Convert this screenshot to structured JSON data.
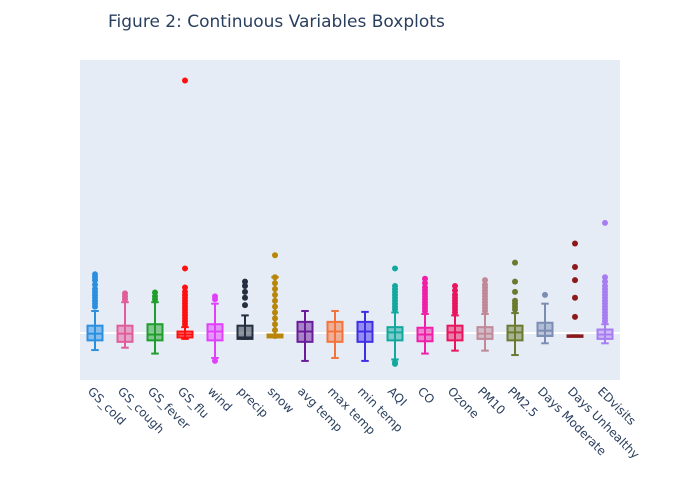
{
  "chart_data": {
    "type": "box",
    "title": "Figure 2: Continuous Variables Boxplots",
    "xlabel": "",
    "ylabel": "",
    "ylim": [
      -1.6,
      9.3
    ],
    "zero_line": true,
    "y_tick_labels_shown": false,
    "grid": "horizontal zero line only",
    "background": "#e5ecf6",
    "series": [
      {
        "name": "GS_cold",
        "color": "#2b8fe0",
        "q1": -0.25,
        "median": -0.02,
        "q3": 0.25,
        "lower": -0.58,
        "upper": 0.75,
        "outliers": [
          0.9,
          1.0,
          1.1,
          1.2,
          1.3,
          1.4,
          1.5,
          1.65,
          1.8,
          1.9,
          2.0
        ]
      },
      {
        "name": "GS_cough",
        "color": "#e05c9a",
        "q1": -0.3,
        "median": -0.02,
        "q3": 0.25,
        "lower": -0.5,
        "upper": 1.05,
        "outliers": [
          1.15,
          1.25,
          1.35
        ]
      },
      {
        "name": "GS_fever",
        "color": "#1f9e2c",
        "q1": -0.25,
        "median": -0.05,
        "q3": 0.3,
        "lower": -0.7,
        "upper": 1.05,
        "outliers": [
          1.15,
          1.25,
          1.38
        ]
      },
      {
        "name": "GS_flu",
        "color": "#ff1010",
        "q1": -0.15,
        "median": -0.05,
        "q3": 0.05,
        "lower": -0.2,
        "upper": 0.2,
        "outliers": [
          0.3,
          0.4,
          0.5,
          0.6,
          0.7,
          0.8,
          0.9,
          1.0,
          1.1,
          1.2,
          1.3,
          1.4,
          1.55,
          2.2,
          8.6
        ]
      },
      {
        "name": "wind",
        "color": "#e040fb",
        "q1": -0.25,
        "median": 0.05,
        "q3": 0.3,
        "lower": -0.85,
        "upper": 1.0,
        "outliers": [
          -0.95,
          1.15,
          1.25
        ]
      },
      {
        "name": "precip",
        "color": "#232f3e",
        "q1": -0.2,
        "median": -0.15,
        "q3": 0.25,
        "lower": -0.2,
        "upper": 0.6,
        "outliers": [
          0.95,
          1.2,
          1.4,
          1.6,
          1.75
        ]
      },
      {
        "name": "snow",
        "color": "#b8860b",
        "q1": -0.15,
        "median": -0.1,
        "q3": -0.05,
        "lower": -0.15,
        "upper": 1.9,
        "outliers": [
          -0.1,
          0.1,
          0.3,
          0.5,
          0.7,
          0.9,
          1.1,
          1.3,
          1.5,
          1.7,
          1.9,
          2.65
        ]
      },
      {
        "name": "avg temp",
        "color": "#6a1b9a",
        "q1": -0.3,
        "median": 0.05,
        "q3": 0.38,
        "lower": -0.95,
        "upper": 0.75,
        "outliers": []
      },
      {
        "name": "max temp",
        "color": "#f4733a",
        "q1": -0.3,
        "median": 0.05,
        "q3": 0.38,
        "lower": -0.85,
        "upper": 0.75,
        "outliers": []
      },
      {
        "name": "min temp",
        "color": "#3f2ee8",
        "q1": -0.3,
        "median": 0.05,
        "q3": 0.38,
        "lower": -0.95,
        "upper": 0.72,
        "outliers": []
      },
      {
        "name": "AQI",
        "color": "#13a89e",
        "q1": -0.25,
        "median": 0.02,
        "q3": 0.2,
        "lower": -0.9,
        "upper": 0.7,
        "outliers": [
          -1.05,
          -1.0,
          0.8,
          0.9,
          1.0,
          1.1,
          1.2,
          1.3,
          1.4,
          1.5,
          1.6,
          2.2
        ]
      },
      {
        "name": "CO",
        "color": "#f01fa8",
        "q1": -0.28,
        "median": -0.05,
        "q3": 0.18,
        "lower": -0.7,
        "upper": 0.65,
        "outliers": [
          0.75,
          0.85,
          0.95,
          1.05,
          1.15,
          1.25,
          1.35,
          1.45,
          1.55,
          1.7,
          1.85
        ]
      },
      {
        "name": "Ozone",
        "color": "#e8155e",
        "q1": -0.25,
        "median": 0.02,
        "q3": 0.25,
        "lower": -0.6,
        "upper": 0.6,
        "outliers": [
          0.7,
          0.8,
          0.9,
          1.0,
          1.1,
          1.2,
          1.3,
          1.45,
          1.6
        ]
      },
      {
        "name": "PM10",
        "color": "#c08997",
        "q1": -0.2,
        "median": -0.02,
        "q3": 0.2,
        "lower": -0.6,
        "upper": 0.65,
        "outliers": [
          0.75,
          0.85,
          0.95,
          1.05,
          1.15,
          1.25,
          1.35,
          1.45,
          1.55,
          1.65,
          1.8
        ]
      },
      {
        "name": "PM2.5",
        "color": "#6b7a2f",
        "q1": -0.25,
        "median": 0.02,
        "q3": 0.25,
        "lower": -0.75,
        "upper": 0.68,
        "outliers": [
          0.8,
          0.9,
          1.0,
          1.1,
          1.4,
          1.75,
          2.4
        ]
      },
      {
        "name": "Days Moderate",
        "color": "#7b8db3",
        "q1": -0.1,
        "median": 0.08,
        "q3": 0.35,
        "lower": -0.35,
        "upper": 1.0,
        "outliers": [
          1.3
        ]
      },
      {
        "name": "Days Unhealthy",
        "color": "#8b1a1a",
        "q1": -0.12,
        "median": -0.1,
        "q3": -0.08,
        "lower": -0.12,
        "upper": -0.08,
        "outliers": [
          0.55,
          1.2,
          1.8,
          2.25,
          3.05
        ]
      },
      {
        "name": "EDvisits",
        "color": "#a97df2",
        "q1": -0.2,
        "median": -0.05,
        "q3": 0.12,
        "lower": -0.35,
        "upper": 0.3,
        "outliers": [
          0.4,
          0.5,
          0.6,
          0.7,
          0.8,
          0.9,
          1.0,
          1.1,
          1.2,
          1.3,
          1.4,
          1.5,
          1.6,
          1.75,
          1.9,
          3.75
        ]
      }
    ]
  }
}
